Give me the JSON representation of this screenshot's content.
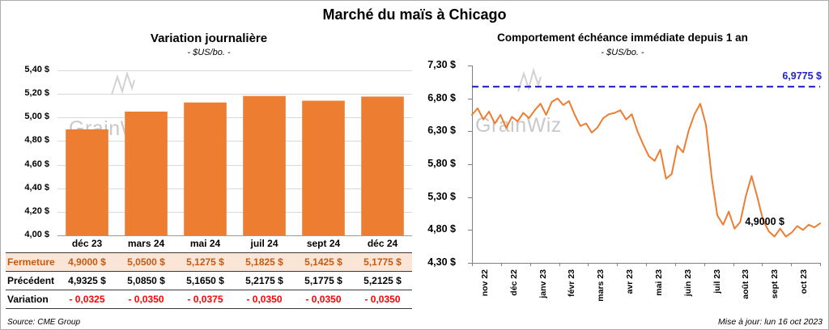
{
  "header": {
    "title": "Marché du maïs à Chicago"
  },
  "watermark": "GrainWiz",
  "footer": {
    "source": "Source: CME Group",
    "updated": "Mise à jour: lun 16 oct 2023"
  },
  "table": {
    "row_labels": [
      "Fermeture",
      "Précédent",
      "Variation"
    ],
    "rows": [
      [
        "4,9000 $",
        "5,0500 $",
        "5,1275 $",
        "5,1825 $",
        "5,1425 $",
        "5,1775 $"
      ],
      [
        "4,9325 $",
        "5,0850 $",
        "5,1650 $",
        "5,2175 $",
        "5,1775 $",
        "5,2125 $"
      ],
      [
        "- 0,0325",
        "- 0,0350",
        "- 0,0375",
        "- 0,0350",
        "- 0,0350",
        "- 0,0350"
      ]
    ]
  },
  "chart_data": [
    {
      "type": "bar",
      "title": "Variation journalière",
      "subtitle": "- $US/bo. -",
      "categories": [
        "déc 23",
        "mars 24",
        "mai 24",
        "juil 24",
        "sept 24",
        "déc 24"
      ],
      "values": [
        4.9,
        5.05,
        5.1275,
        5.1825,
        5.1425,
        5.1775
      ],
      "ylim": [
        4.0,
        5.4
      ],
      "ytick_labels": [
        "4,00 $",
        "4,20 $",
        "4,40 $",
        "4,60 $",
        "4,80 $",
        "5,00 $",
        "5,20 $",
        "5,40 $"
      ],
      "bar_color": "#ED7D31",
      "grid": true
    },
    {
      "type": "line",
      "title": "Comportement échéance immédiate depuis 1 an",
      "subtitle": "- $US/bo. -",
      "x_labels": [
        "nov 22",
        "déc 22",
        "janv 23",
        "févr 23",
        "mars 23",
        "avr 23",
        "mai 23",
        "juin 23",
        "juil 23",
        "août 23",
        "sept 23",
        "oct 23"
      ],
      "ylim": [
        4.3,
        7.3
      ],
      "ytick_labels": [
        "7,30 $",
        "6,80 $",
        "6,30 $",
        "5,80 $",
        "5,30 $",
        "4,80 $",
        "4,30 $"
      ],
      "line_color": "#ED7D31",
      "ref_line": {
        "value": 6.9775,
        "label": "6,9775 $",
        "color": "#2222CC"
      },
      "end_label": {
        "value": 4.9,
        "text": "4,9000 $"
      },
      "values": [
        6.55,
        6.65,
        6.48,
        6.6,
        6.42,
        6.55,
        6.35,
        6.52,
        6.45,
        6.58,
        6.5,
        6.62,
        6.72,
        6.55,
        6.75,
        6.8,
        6.7,
        6.76,
        6.55,
        6.38,
        6.42,
        6.28,
        6.36,
        6.5,
        6.56,
        6.58,
        6.62,
        6.48,
        6.56,
        6.3,
        6.1,
        5.92,
        5.85,
        6.02,
        5.58,
        5.65,
        6.08,
        5.98,
        6.32,
        6.56,
        6.72,
        6.4,
        5.6,
        5.02,
        4.88,
        5.08,
        4.82,
        4.92,
        5.32,
        5.62,
        5.3,
        4.95,
        4.78,
        4.7,
        4.82,
        4.7,
        4.76,
        4.86,
        4.8,
        4.88,
        4.84,
        4.9
      ],
      "grid": false
    }
  ]
}
